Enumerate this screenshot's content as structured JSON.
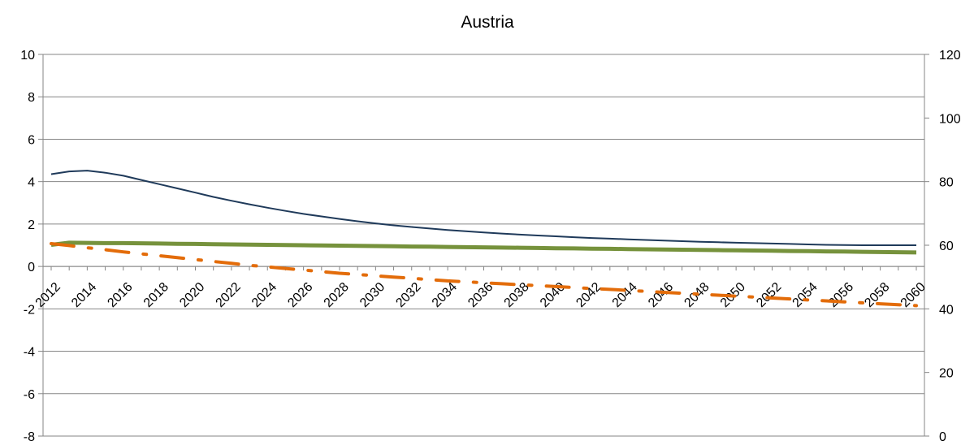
{
  "chart_data": {
    "type": "line",
    "title": "Austria",
    "x": [
      2012,
      2013,
      2014,
      2015,
      2016,
      2017,
      2018,
      2019,
      2020,
      2021,
      2022,
      2023,
      2024,
      2025,
      2026,
      2027,
      2028,
      2029,
      2030,
      2031,
      2032,
      2033,
      2034,
      2035,
      2036,
      2037,
      2038,
      2039,
      2040,
      2041,
      2042,
      2043,
      2044,
      2045,
      2046,
      2047,
      2048,
      2049,
      2050,
      2051,
      2052,
      2053,
      2054,
      2055,
      2056,
      2057,
      2058,
      2059,
      2060
    ],
    "x_tick_labels": [
      "2012",
      "2014",
      "2016",
      "2018",
      "2020",
      "2022",
      "2024",
      "2026",
      "2028",
      "2030",
      "2032",
      "2034",
      "2036",
      "2038",
      "2040",
      "2042",
      "2044",
      "2046",
      "2048",
      "2050",
      "2052",
      "2054",
      "2056",
      "2058",
      "2060"
    ],
    "y_left": {
      "range": [
        -8,
        10
      ],
      "ticks": [
        "10",
        "8",
        "6",
        "4",
        "2",
        "0",
        "-2",
        "-4",
        "-6",
        "-8"
      ],
      "tick_values": [
        10,
        8,
        6,
        4,
        2,
        0,
        -2,
        -4,
        -6,
        -8
      ]
    },
    "y_right": {
      "range": [
        0,
        120
      ],
      "ticks": [
        "120",
        "100",
        "80",
        "60",
        "40",
        "20",
        "0"
      ],
      "tick_values": [
        120,
        100,
        80,
        60,
        40,
        20,
        0
      ]
    },
    "grid": true,
    "legend": "none",
    "series": [
      {
        "axis": "left",
        "style": "solid-thin",
        "color": "#1f3a5a",
        "values": [
          4.35,
          4.48,
          4.52,
          4.42,
          4.28,
          4.08,
          3.88,
          3.68,
          3.48,
          3.28,
          3.1,
          2.93,
          2.77,
          2.62,
          2.48,
          2.36,
          2.24,
          2.13,
          2.03,
          1.94,
          1.86,
          1.79,
          1.72,
          1.66,
          1.6,
          1.55,
          1.5,
          1.46,
          1.42,
          1.38,
          1.34,
          1.31,
          1.28,
          1.25,
          1.22,
          1.19,
          1.16,
          1.14,
          1.12,
          1.1,
          1.08,
          1.06,
          1.04,
          1.02,
          1.01,
          1.0,
          1.0,
          1.0,
          1.0
        ]
      },
      {
        "axis": "left",
        "style": "solid-thick",
        "color": "#76923c",
        "values": [
          1.02,
          1.12,
          1.11,
          1.1,
          1.1,
          1.09,
          1.08,
          1.07,
          1.06,
          1.05,
          1.04,
          1.03,
          1.02,
          1.01,
          1.0,
          0.99,
          0.98,
          0.97,
          0.96,
          0.95,
          0.94,
          0.93,
          0.92,
          0.91,
          0.9,
          0.89,
          0.88,
          0.87,
          0.86,
          0.85,
          0.84,
          0.83,
          0.82,
          0.81,
          0.8,
          0.79,
          0.78,
          0.77,
          0.76,
          0.75,
          0.74,
          0.73,
          0.72,
          0.71,
          0.7,
          0.69,
          0.68,
          0.67,
          0.66
        ]
      },
      {
        "axis": "right",
        "style": "dash-dot",
        "color": "#e36c0a",
        "values": [
          60.5,
          59.9,
          59.2,
          58.6,
          57.9,
          57.3,
          56.7,
          56.1,
          55.5,
          54.9,
          54.3,
          53.7,
          53.2,
          52.7,
          52.2,
          51.7,
          51.2,
          50.8,
          50.4,
          50.0,
          49.6,
          49.2,
          48.8,
          48.5,
          48.2,
          47.9,
          47.6,
          47.3,
          47.0,
          46.7,
          46.4,
          46.1,
          45.8,
          45.5,
          45.2,
          44.9,
          44.6,
          44.3,
          44.0,
          43.7,
          43.4,
          43.1,
          42.8,
          42.5,
          42.2,
          41.9,
          41.6,
          41.3,
          41.0
        ]
      }
    ]
  }
}
